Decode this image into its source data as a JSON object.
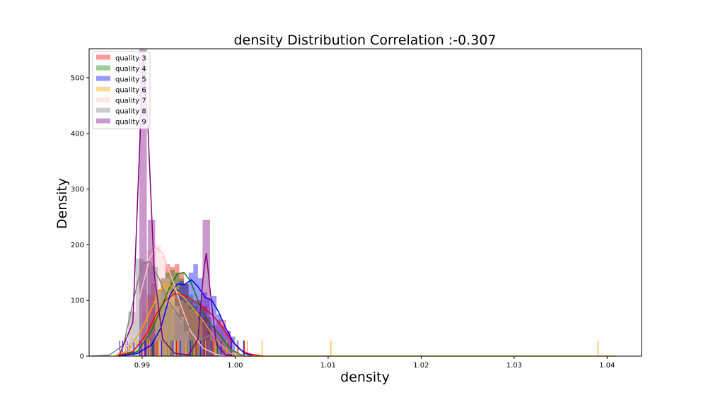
{
  "chart_data": {
    "type": "histogram-kde",
    "title": "density Distribution Correlation :-0.307",
    "xlabel": "density",
    "ylabel": "Density",
    "xlim": [
      0.9843,
      1.0437
    ],
    "ylim": [
      0,
      552
    ],
    "xticks": [
      0.99,
      1.0,
      1.01,
      1.02,
      1.03,
      1.04
    ],
    "xtick_labels": [
      "0.99",
      "1.00",
      "1.01",
      "1.02",
      "1.03",
      "1.04"
    ],
    "yticks": [
      0,
      100,
      200,
      300,
      400,
      500
    ],
    "ytick_labels": [
      "0",
      "100",
      "200",
      "300",
      "400",
      "500"
    ],
    "legend_position": "top-left",
    "series": [
      {
        "name": "quality 3",
        "color": "#ff0000",
        "hist_bins": [
          [
            0.9905,
            0.991,
            110
          ],
          [
            0.991,
            0.9915,
            130
          ],
          [
            0.9915,
            0.992,
            95
          ],
          [
            0.992,
            0.9925,
            140
          ],
          [
            0.9925,
            0.993,
            165
          ],
          [
            0.993,
            0.9935,
            160
          ],
          [
            0.9935,
            0.994,
            165
          ],
          [
            0.994,
            0.9945,
            150
          ],
          [
            0.9945,
            0.995,
            130
          ],
          [
            0.995,
            0.9955,
            100
          ],
          [
            0.9955,
            0.996,
            90
          ],
          [
            0.996,
            0.9965,
            100
          ],
          [
            0.9965,
            0.997,
            90
          ],
          [
            0.997,
            0.9975,
            70
          ],
          [
            0.9975,
            0.998,
            55
          ],
          [
            0.998,
            0.9985,
            65
          ],
          [
            0.9985,
            0.999,
            65
          ],
          [
            0.999,
            0.9995,
            45
          ]
        ],
        "kde": [
          [
            0.987,
            0
          ],
          [
            0.989,
            8
          ],
          [
            0.9905,
            40
          ],
          [
            0.9915,
            75
          ],
          [
            0.9925,
            100
          ],
          [
            0.9935,
            112
          ],
          [
            0.9945,
            110
          ],
          [
            0.9955,
            100
          ],
          [
            0.9965,
            88
          ],
          [
            0.9975,
            75
          ],
          [
            0.9985,
            55
          ],
          [
            0.9995,
            30
          ],
          [
            1.0005,
            12
          ],
          [
            1.0015,
            4
          ],
          [
            1.003,
            0
          ]
        ]
      },
      {
        "name": "quality 4",
        "color": "#008000",
        "hist_bins": [
          [
            0.9905,
            0.991,
            60
          ],
          [
            0.991,
            0.9915,
            95
          ],
          [
            0.9915,
            0.992,
            120
          ],
          [
            0.992,
            0.9925,
            140
          ],
          [
            0.9925,
            0.993,
            150
          ],
          [
            0.993,
            0.9935,
            155
          ],
          [
            0.9935,
            0.994,
            150
          ],
          [
            0.994,
            0.9945,
            140
          ],
          [
            0.9945,
            0.995,
            130
          ],
          [
            0.995,
            0.9955,
            110
          ],
          [
            0.9955,
            0.996,
            100
          ],
          [
            0.996,
            0.9965,
            80
          ],
          [
            0.9965,
            0.997,
            70
          ],
          [
            0.997,
            0.9975,
            55
          ]
        ],
        "kde": [
          [
            0.9875,
            0
          ],
          [
            0.9895,
            8
          ],
          [
            0.991,
            45
          ],
          [
            0.992,
            85
          ],
          [
            0.993,
            125
          ],
          [
            0.9938,
            148
          ],
          [
            0.9945,
            150
          ],
          [
            0.9952,
            135
          ],
          [
            0.996,
            100
          ],
          [
            0.9968,
            70
          ],
          [
            0.9975,
            55
          ],
          [
            0.9985,
            35
          ],
          [
            0.9995,
            12
          ],
          [
            1.001,
            0
          ]
        ]
      },
      {
        "name": "quality 5",
        "color": "#0000ff",
        "hist_bins": [
          [
            0.9935,
            0.994,
            120
          ],
          [
            0.994,
            0.9945,
            135
          ],
          [
            0.9945,
            0.995,
            130
          ],
          [
            0.995,
            0.9955,
            150
          ],
          [
            0.9955,
            0.996,
            165
          ],
          [
            0.996,
            0.9965,
            140
          ],
          [
            0.9965,
            0.997,
            115
          ],
          [
            0.997,
            0.9975,
            105
          ],
          [
            0.9975,
            0.998,
            108
          ],
          [
            0.998,
            0.9985,
            75
          ],
          [
            0.9985,
            0.999,
            55
          ],
          [
            0.999,
            0.9995,
            45
          ],
          [
            0.9995,
            1.0,
            35
          ]
        ],
        "kde": [
          [
            0.9875,
            0
          ],
          [
            0.9895,
            5
          ],
          [
            0.991,
            20
          ],
          [
            0.992,
            50
          ],
          [
            0.993,
            110
          ],
          [
            0.9938,
            130
          ],
          [
            0.9945,
            128
          ],
          [
            0.9953,
            137
          ],
          [
            0.996,
            125
          ],
          [
            0.9968,
            105
          ],
          [
            0.9975,
            100
          ],
          [
            0.9982,
            80
          ],
          [
            0.999,
            50
          ],
          [
            0.9998,
            25
          ],
          [
            1.001,
            5
          ],
          [
            1.002,
            0
          ]
        ]
      },
      {
        "name": "quality 6",
        "color": "#ffa500",
        "hist_bins": [
          [
            0.99,
            0.9905,
            80
          ],
          [
            0.9905,
            0.991,
            100
          ],
          [
            0.991,
            0.9915,
            110
          ],
          [
            0.9915,
            0.992,
            120
          ],
          [
            0.992,
            0.9925,
            130
          ],
          [
            0.9925,
            0.993,
            125
          ],
          [
            0.993,
            0.9935,
            115
          ],
          [
            0.9935,
            0.994,
            110
          ],
          [
            0.994,
            0.9945,
            100
          ],
          [
            0.9945,
            0.995,
            95
          ],
          [
            0.995,
            0.9955,
            85
          ],
          [
            0.9955,
            0.996,
            80
          ],
          [
            0.996,
            0.9965,
            65
          ],
          [
            0.9965,
            0.997,
            55
          ],
          [
            0.997,
            0.9975,
            40
          ],
          [
            0.9975,
            0.998,
            30
          ]
        ],
        "kde": [
          [
            0.987,
            0
          ],
          [
            0.9885,
            10
          ],
          [
            0.99,
            50
          ],
          [
            0.991,
            85
          ],
          [
            0.992,
            120
          ],
          [
            0.9928,
            130
          ],
          [
            0.9935,
            120
          ],
          [
            0.9945,
            105
          ],
          [
            0.9955,
            85
          ],
          [
            0.9965,
            65
          ],
          [
            0.9975,
            40
          ],
          [
            0.9985,
            20
          ],
          [
            0.9995,
            5
          ],
          [
            1.001,
            0
          ],
          [
            1.04,
            0
          ],
          [
            1.041,
            0
          ]
        ]
      },
      {
        "name": "quality 7",
        "color": "#ffc0cb",
        "hist_bins": [
          [
            0.99,
            0.9905,
            120
          ],
          [
            0.9905,
            0.991,
            190
          ],
          [
            0.991,
            0.9915,
            195
          ],
          [
            0.9915,
            0.992,
            200
          ],
          [
            0.992,
            0.9925,
            180
          ],
          [
            0.9925,
            0.993,
            140
          ],
          [
            0.993,
            0.9935,
            110
          ],
          [
            0.9935,
            0.994,
            90
          ],
          [
            0.994,
            0.9945,
            70
          ],
          [
            0.9945,
            0.995,
            45
          ]
        ],
        "kde": [
          [
            0.987,
            0
          ],
          [
            0.9885,
            20
          ],
          [
            0.9898,
            110
          ],
          [
            0.9908,
            175
          ],
          [
            0.9915,
            195
          ],
          [
            0.9922,
            185
          ],
          [
            0.9932,
            140
          ],
          [
            0.9942,
            90
          ],
          [
            0.9952,
            45
          ],
          [
            0.9965,
            15
          ],
          [
            0.998,
            3
          ],
          [
            0.999,
            0
          ]
        ]
      },
      {
        "name": "quality 8",
        "color": "#808080",
        "hist_bins": [
          [
            0.9885,
            0.9893,
            80
          ],
          [
            0.9893,
            0.9901,
            175
          ],
          [
            0.9901,
            0.9909,
            170
          ],
          [
            0.9909,
            0.9917,
            160
          ],
          [
            0.9917,
            0.9925,
            120
          ],
          [
            0.9925,
            0.9933,
            90
          ],
          [
            0.9933,
            0.9941,
            80
          ],
          [
            0.9941,
            0.9949,
            60
          ],
          [
            0.9949,
            0.9957,
            40
          ],
          [
            0.9957,
            0.9965,
            30
          ],
          [
            0.9965,
            0.9973,
            25
          ],
          [
            0.9973,
            0.9981,
            20
          ],
          [
            0.9981,
            0.9989,
            15
          ]
        ],
        "kde": [
          [
            0.9845,
            0
          ],
          [
            0.9865,
            2
          ],
          [
            0.988,
            20
          ],
          [
            0.9892,
            110
          ],
          [
            0.99,
            165
          ],
          [
            0.9908,
            170
          ],
          [
            0.9918,
            140
          ],
          [
            0.9928,
            100
          ],
          [
            0.994,
            70
          ],
          [
            0.9952,
            50
          ],
          [
            0.9962,
            30
          ],
          [
            0.9975,
            38
          ],
          [
            0.9985,
            30
          ],
          [
            0.9995,
            10
          ],
          [
            1.001,
            0
          ]
        ]
      },
      {
        "name": "quality 9",
        "color": "#800080",
        "hist_bins": [
          [
            0.9897,
            0.9905,
            552
          ],
          [
            0.9906,
            0.9914,
            245
          ],
          [
            0.9965,
            0.9973,
            245
          ]
        ],
        "kde": [
          [
            0.9875,
            0
          ],
          [
            0.989,
            60
          ],
          [
            0.9896,
            320
          ],
          [
            0.9901,
            530
          ],
          [
            0.9906,
            420
          ],
          [
            0.9913,
            150
          ],
          [
            0.9922,
            30
          ],
          [
            0.9935,
            5
          ],
          [
            0.995,
            2
          ],
          [
            0.996,
            30
          ],
          [
            0.9966,
            150
          ],
          [
            0.9969,
            185
          ],
          [
            0.9973,
            120
          ],
          [
            0.998,
            20
          ],
          [
            0.999,
            2
          ],
          [
            1.0,
            0
          ]
        ]
      }
    ],
    "rug": [
      {
        "color": "#0000ff",
        "x": [
          0.9876,
          0.9879,
          0.9884,
          0.9891,
          0.9897,
          0.9904,
          0.9912,
          0.9921,
          0.9933,
          0.9941,
          0.9952,
          0.9963,
          0.9974,
          0.9985,
          0.9996,
          1.0003,
          1.0009
        ]
      },
      {
        "color": "#ffa500",
        "x": [
          0.9882,
          0.9894,
          0.9908,
          0.9917,
          0.9926,
          0.9938,
          0.9947,
          0.9956,
          0.9968,
          0.9979,
          0.9991,
          1.0002,
          1.0013,
          1.0029,
          1.0103,
          1.039
        ]
      },
      {
        "color": "#ff0000",
        "x": [
          0.9899,
          0.9916,
          0.9937,
          0.9958,
          0.9976,
          0.9995,
          1.001
        ]
      },
      {
        "color": "#808080",
        "x": [
          0.9886,
          0.9903,
          0.9927,
          0.9949,
          0.9972,
          0.9989
        ]
      },
      {
        "color": "#800080",
        "x": [
          0.9899,
          0.9903,
          0.9967
        ]
      },
      {
        "color": "#008000",
        "x": [
          0.9911,
          0.9931,
          0.9954,
          0.9981
        ]
      },
      {
        "color": "#ffc0cb",
        "x": [
          0.9901,
          0.9919,
          0.9935
        ]
      }
    ]
  }
}
